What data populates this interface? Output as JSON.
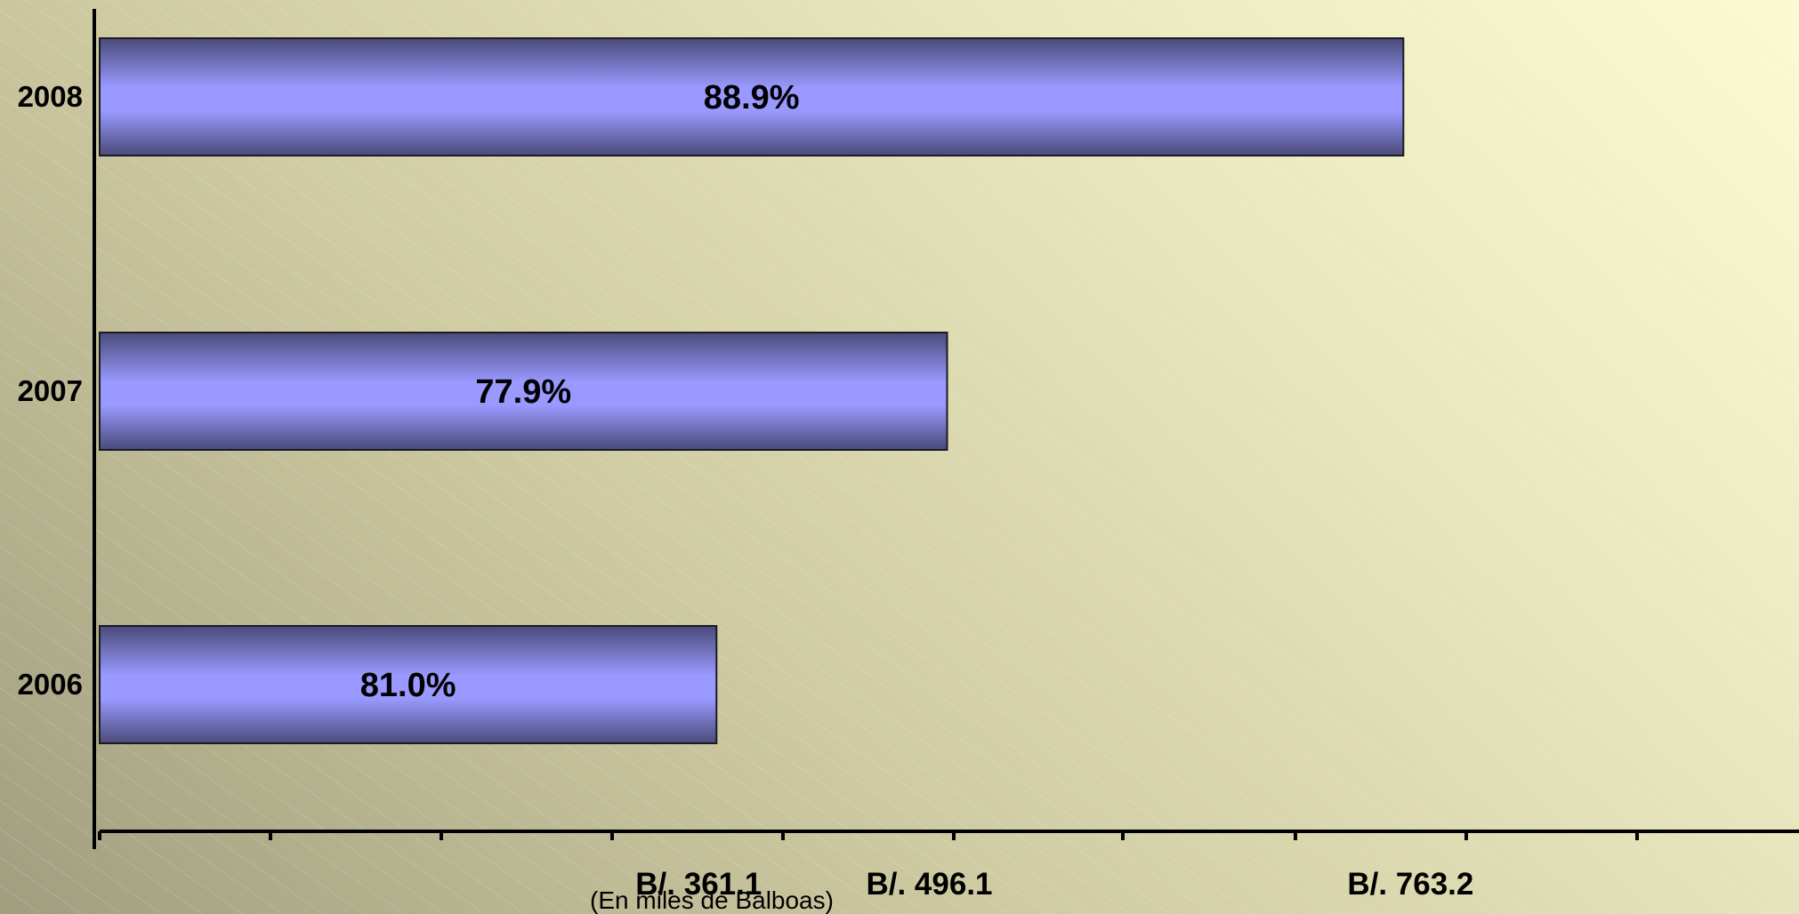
{
  "chart_data": {
    "type": "bar",
    "orientation": "horizontal",
    "categories": [
      "2006",
      "2007",
      "2008"
    ],
    "values": [
      361.1,
      496.1,
      763.2
    ],
    "value_labels": [
      "B/. 361.1",
      "B/. 496.1",
      "B/. 763.2"
    ],
    "data_labels": [
      "81.0%",
      "77.9%",
      "88.9%"
    ],
    "xlabel": "(En miles de Balboas)",
    "ylabel": "",
    "xlim": [
      0,
      900
    ],
    "grid": false,
    "legend": "none",
    "bar_color": "#9999ff",
    "bar_edge_color": "#4a4a7a"
  }
}
